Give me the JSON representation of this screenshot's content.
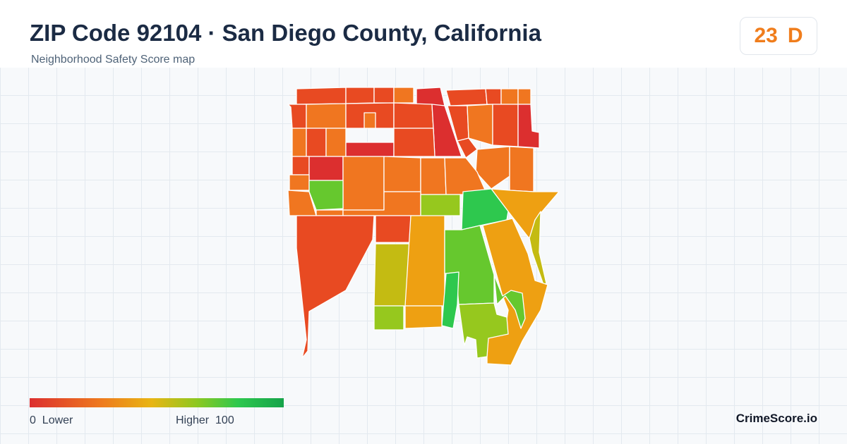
{
  "header": {
    "title": "ZIP Code 92104 · San Diego County, California",
    "subtitle": "Neighborhood Safety Score map",
    "score": "23",
    "grade": "D",
    "score_color": "#f07d1c"
  },
  "map": {
    "colors": {
      "red": "#dc2f2f",
      "red_orange": "#e84a22",
      "orange": "#f07620",
      "amber": "#eea012",
      "yellow_olive": "#c4bb12",
      "yellow_green": "#96c81e",
      "green": "#66c82e",
      "bright_green": "#2ec84e"
    }
  },
  "legend": {
    "min_value": "0",
    "min_label": "Lower",
    "max_label": "Higher",
    "max_value": "100"
  },
  "brand": "CrimeScore.io"
}
